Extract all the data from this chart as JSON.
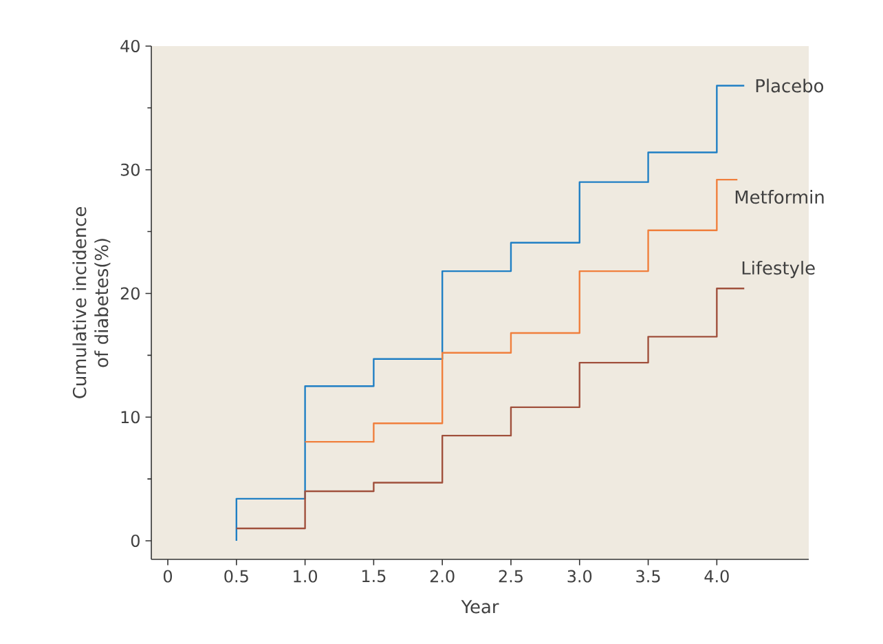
{
  "chart_data": {
    "type": "step",
    "xlabel": "Year",
    "ylabel": "Cumulative incidence of diabetes(%)",
    "xlim": [
      -0.12,
      4.67
    ],
    "ylim": [
      -1.5,
      40
    ],
    "xticks": [
      0,
      {
        "value": 0.5,
        "label": "0.5"
      },
      {
        "value": 1,
        "label": "1.0"
      },
      {
        "value": 1.5,
        "label": "1.5"
      },
      {
        "value": 2,
        "label": "2.0"
      },
      {
        "value": 2.5,
        "label": "2.5"
      },
      {
        "value": 3,
        "label": "3.0"
      },
      {
        "value": 3.5,
        "label": "3.5"
      },
      {
        "value": 4,
        "label": "4.0"
      }
    ],
    "yticks": [
      0,
      10,
      20,
      30,
      40
    ],
    "series": [
      {
        "name": "Placebo",
        "color": "#1f7fc4",
        "x": [
          0.5,
          0.5,
          1.0,
          1.5,
          2.0,
          2.5,
          3.0,
          3.5,
          4.0,
          4.2
        ],
        "values": [
          0,
          3.4,
          12.5,
          14.7,
          21.8,
          24.1,
          29.0,
          31.4,
          36.8,
          36.8
        ]
      },
      {
        "name": "Metformin",
        "color": "#f07f3c",
        "x": [
          1.0,
          1.5,
          2.0,
          2.5,
          3.0,
          3.5,
          4.0,
          4.15
        ],
        "values": [
          8.0,
          9.5,
          15.2,
          16.8,
          21.8,
          25.1,
          29.2,
          29.2
        ]
      },
      {
        "name": "Lifestyle",
        "color": "#a0503c",
        "x": [
          0.5,
          1.0,
          1.5,
          2.0,
          2.5,
          3.0,
          3.5,
          4.0,
          4.2
        ],
        "values": [
          1.0,
          4.0,
          4.7,
          8.5,
          10.8,
          14.4,
          16.5,
          20.4,
          20.4
        ]
      }
    ]
  }
}
